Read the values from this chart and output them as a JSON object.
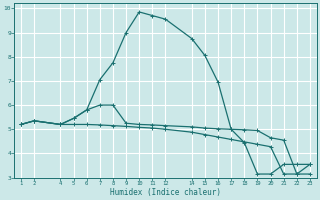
{
  "bg_color": "#cce8e8",
  "grid_color": "#ffffff",
  "line_color": "#1a7070",
  "xlabel": "Humidex (Indice chaleur)",
  "xlim": [
    0.5,
    23.5
  ],
  "ylim": [
    3,
    10.2
  ],
  "xticks": [
    1,
    2,
    4,
    5,
    6,
    7,
    8,
    9,
    10,
    11,
    12,
    14,
    15,
    16,
    17,
    18,
    19,
    20,
    21,
    22,
    23
  ],
  "yticks": [
    3,
    4,
    5,
    6,
    7,
    8,
    9,
    10
  ],
  "curve_upper_x": [
    1,
    2,
    4,
    5,
    6,
    7,
    8,
    9,
    10,
    11,
    12,
    14,
    15,
    16,
    17,
    18,
    19,
    20,
    21,
    22,
    23
  ],
  "curve_upper_y": [
    5.2,
    5.35,
    5.2,
    5.45,
    5.8,
    7.05,
    7.75,
    9.0,
    9.85,
    9.7,
    9.55,
    8.75,
    8.05,
    6.95,
    5.0,
    4.45,
    3.15,
    3.15,
    3.55,
    3.55,
    3.55
  ],
  "curve_mid_x": [
    1,
    2,
    4,
    5,
    6,
    7,
    8,
    9,
    10,
    11,
    12,
    14,
    15,
    16,
    17,
    18,
    19,
    20,
    21,
    22,
    23
  ],
  "curve_mid_y": [
    5.2,
    5.35,
    5.2,
    5.45,
    5.8,
    6.0,
    6.0,
    5.25,
    5.2,
    5.18,
    5.15,
    5.1,
    5.05,
    5.02,
    5.0,
    4.98,
    4.95,
    4.65,
    4.55,
    3.15,
    3.15
  ],
  "curve_low_x": [
    1,
    2,
    4,
    5,
    6,
    7,
    8,
    9,
    10,
    11,
    12,
    14,
    15,
    16,
    17,
    18,
    19,
    20,
    21,
    22,
    23
  ],
  "curve_low_y": [
    5.2,
    5.35,
    5.2,
    5.2,
    5.2,
    5.18,
    5.15,
    5.12,
    5.08,
    5.05,
    5.0,
    4.88,
    4.78,
    4.68,
    4.58,
    4.48,
    4.38,
    4.28,
    3.15,
    3.15,
    3.55
  ]
}
